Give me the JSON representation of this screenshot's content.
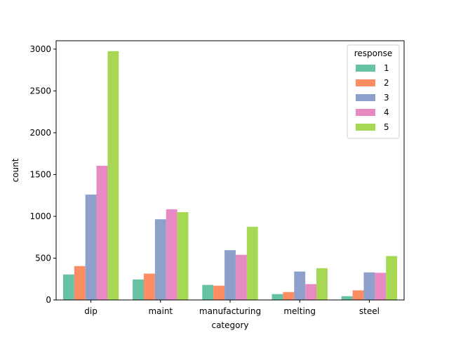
{
  "chart_data": {
    "type": "bar",
    "xlabel": "category",
    "ylabel": "count",
    "categories": [
      "dip",
      "maint",
      "manufacturing",
      "melting",
      "steel"
    ],
    "ylim": [
      0,
      3100
    ],
    "yticks": [
      0,
      500,
      1000,
      1500,
      2000,
      2500,
      3000
    ],
    "grid": false,
    "legend": {
      "title": "response",
      "placement": "top-right"
    },
    "series": [
      {
        "name": "1",
        "color": "#66c2a5",
        "values": [
          305,
          245,
          180,
          70,
          45
        ]
      },
      {
        "name": "2",
        "color": "#fc8d62",
        "values": [
          405,
          315,
          170,
          95,
          115
        ]
      },
      {
        "name": "3",
        "color": "#8da0cb",
        "values": [
          1260,
          965,
          595,
          340,
          330
        ]
      },
      {
        "name": "4",
        "color": "#e78ac3",
        "values": [
          1605,
          1085,
          540,
          190,
          325
        ]
      },
      {
        "name": "5",
        "color": "#a6d854",
        "values": [
          2975,
          1050,
          875,
          380,
          525
        ]
      }
    ]
  }
}
